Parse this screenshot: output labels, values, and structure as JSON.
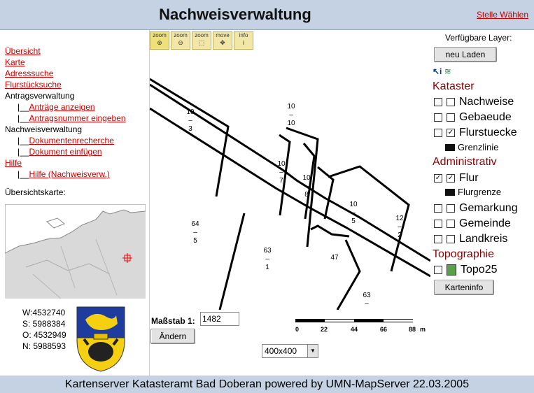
{
  "header": {
    "title": "Nachweisverwaltung",
    "stelle_link": "Stelle Wählen"
  },
  "nav": {
    "uebersicht": "Übersicht",
    "karte": "Karte",
    "adresssuche": "Adresssuche",
    "flurstueckssuche": "Flurstücksuche",
    "antragsverwaltung": "Antragsverwaltung",
    "antraege_anzeigen": "Anträge anzeigen",
    "antragsnummer": "Antragsnummer eingeben",
    "nachweisverwaltung": "Nachweisverwaltung",
    "dokumentenrecherche": "Dokumentenrecherche",
    "dokument_einfuegen": "Dokument einfügen",
    "hilfe": "Hilfe",
    "hilfe_nachweis": "Hilfe (Nachweisverw.)",
    "sub_prefix": "|__"
  },
  "overview": {
    "label": "Übersichtskarte:",
    "w": "W:4532740",
    "s": "S: 5988384",
    "o": "O: 4532949",
    "n": "N: 5988593"
  },
  "tools": [
    "zoom",
    "zoom",
    "zoom",
    "move",
    "info"
  ],
  "scale": {
    "label": "Maßstab 1:",
    "value": "1482",
    "aendern": "Ändern",
    "size": "400x400",
    "bar_ticks": [
      "0",
      "22",
      "44",
      "66",
      "88"
    ],
    "bar_unit": "m"
  },
  "map_labels": [
    {
      "num": "10",
      "den": "3"
    },
    {
      "num": "10",
      "den": "10"
    },
    {
      "num": "10",
      "den": "7"
    },
    {
      "num": "10",
      "den": "8"
    },
    {
      "num": "10",
      "den": "5"
    },
    {
      "num": "12",
      "den": "2"
    },
    {
      "num": "64",
      "den": "5"
    },
    {
      "num": "63",
      "den": "1"
    },
    {
      "num": "47",
      "den": ""
    },
    {
      "num": "63",
      "den": ""
    }
  ],
  "layers": {
    "label": "Verfügbare Layer:",
    "neu_laden": "neu Laden",
    "kataster": "Kataster",
    "nachweise": "Nachweise",
    "gebaeude": "Gebaeude",
    "flurstuecke": "Flurstuecke",
    "grenzlinie": "Grenzlinie",
    "administrativ": "Administrativ",
    "flur": "Flur",
    "flurgrenze": "Flurgrenze",
    "gemarkung": "Gemarkung",
    "gemeinde": "Gemeinde",
    "landkreis": "Landkreis",
    "topographie": "Topographie",
    "topo25": "Topo25",
    "karteninfo": "Karteninfo"
  },
  "footer": "Kartenserver Katasteramt Bad Doberan powered by UMN-MapServer 22.03.2005"
}
